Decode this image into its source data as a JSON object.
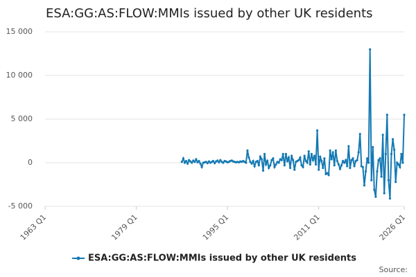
{
  "chart_data": {
    "type": "line",
    "title": "ESA:GG:AS:FLOW:MMIs issued by other UK residents",
    "source": "Source:",
    "xlim": [
      "1963 Q1",
      "2026 Q1"
    ],
    "xticks": [
      "1963 Q1",
      "1979 Q1",
      "1995 Q1",
      "2011 Q1",
      "2026 Q1"
    ],
    "ylim": [
      -5000,
      15000
    ],
    "yticks": [
      {
        "value": -5000,
        "label": "-5 000"
      },
      {
        "value": 0,
        "label": "0"
      },
      {
        "value": 5000,
        "label": "5 000"
      },
      {
        "value": 10000,
        "label": "10 000"
      },
      {
        "value": 15000,
        "label": "15 000"
      }
    ],
    "grid": true,
    "legend": "bottom",
    "x": [
      "1987 Q1",
      "1987 Q2",
      "1987 Q3",
      "1987 Q4",
      "1988 Q1",
      "1988 Q2",
      "1988 Q3",
      "1988 Q4",
      "1989 Q1",
      "1989 Q2",
      "1989 Q3",
      "1989 Q4",
      "1990 Q1",
      "1990 Q2",
      "1990 Q3",
      "1990 Q4",
      "1991 Q1",
      "1991 Q2",
      "1991 Q3",
      "1991 Q4",
      "1992 Q1",
      "1992 Q2",
      "1992 Q3",
      "1992 Q4",
      "1993 Q1",
      "1993 Q2",
      "1993 Q3",
      "1993 Q4",
      "1994 Q1",
      "1994 Q2",
      "1994 Q3",
      "1994 Q4",
      "1995 Q1",
      "1995 Q2",
      "1995 Q3",
      "1995 Q4",
      "1996 Q1",
      "1996 Q2",
      "1996 Q3",
      "1996 Q4",
      "1997 Q1",
      "1997 Q2",
      "1997 Q3",
      "1997 Q4",
      "1998 Q1",
      "1998 Q2",
      "1998 Q3",
      "1998 Q4",
      "1999 Q1",
      "1999 Q2",
      "1999 Q3",
      "1999 Q4",
      "2000 Q1",
      "2000 Q2",
      "2000 Q3",
      "2000 Q4",
      "2001 Q1",
      "2001 Q2",
      "2001 Q3",
      "2001 Q4",
      "2002 Q1",
      "2002 Q2",
      "2002 Q3",
      "2002 Q4",
      "2003 Q1",
      "2003 Q2",
      "2003 Q3",
      "2003 Q4",
      "2004 Q1",
      "2004 Q2",
      "2004 Q3",
      "2004 Q4",
      "2005 Q1",
      "2005 Q2",
      "2005 Q3",
      "2005 Q4",
      "2006 Q1",
      "2006 Q2",
      "2006 Q3",
      "2006 Q4",
      "2007 Q1",
      "2007 Q2",
      "2007 Q3",
      "2007 Q4",
      "2008 Q1",
      "2008 Q2",
      "2008 Q3",
      "2008 Q4",
      "2009 Q1",
      "2009 Q2",
      "2009 Q3",
      "2009 Q4",
      "2010 Q1",
      "2010 Q2",
      "2010 Q3",
      "2010 Q4",
      "2011 Q1",
      "2011 Q2",
      "2011 Q3",
      "2011 Q4",
      "2012 Q1",
      "2012 Q2",
      "2012 Q3",
      "2012 Q4",
      "2013 Q1",
      "2013 Q2",
      "2013 Q3",
      "2013 Q4",
      "2014 Q1",
      "2014 Q2",
      "2014 Q3",
      "2014 Q4",
      "2015 Q1",
      "2015 Q2",
      "2015 Q3",
      "2015 Q4",
      "2016 Q1",
      "2016 Q2",
      "2016 Q3",
      "2016 Q4",
      "2017 Q1",
      "2017 Q2",
      "2017 Q3",
      "2017 Q4",
      "2018 Q1",
      "2018 Q2",
      "2018 Q3",
      "2018 Q4",
      "2019 Q1",
      "2019 Q2",
      "2019 Q3",
      "2019 Q4",
      "2020 Q1",
      "2020 Q2",
      "2020 Q3",
      "2020 Q4",
      "2021 Q1",
      "2021 Q2",
      "2021 Q3",
      "2021 Q4",
      "2022 Q1",
      "2022 Q2",
      "2022 Q3",
      "2022 Q4",
      "2023 Q1",
      "2023 Q2",
      "2023 Q3",
      "2023 Q4",
      "2024 Q1",
      "2024 Q2",
      "2024 Q3",
      "2024 Q4",
      "2025 Q1",
      "2025 Q2",
      "2025 Q3",
      "2025 Q4",
      "2026 Q1"
    ],
    "series": [
      {
        "name": "ESA:GG:AS:FLOW:MMIs issued by other UK residents",
        "color": "#1479b3",
        "values": [
          100,
          500,
          0,
          200,
          -100,
          300,
          150,
          0,
          250,
          100,
          400,
          50,
          200,
          -100,
          -500,
          0,
          50,
          100,
          -50,
          150,
          0,
          100,
          200,
          -50,
          150,
          250,
          50,
          300,
          100,
          0,
          200,
          150,
          50,
          100,
          200,
          250,
          150,
          100,
          50,
          100,
          50,
          150,
          100,
          200,
          100,
          0,
          1400,
          600,
          100,
          -100,
          200,
          -400,
          100,
          200,
          -300,
          700,
          400,
          -900,
          1000,
          -200,
          200,
          -600,
          -300,
          300,
          500,
          -500,
          -200,
          100,
          0,
          400,
          300,
          1000,
          -300,
          1000,
          200,
          600,
          -600,
          800,
          300,
          -800,
          100,
          200,
          300,
          600,
          -300,
          -500,
          800,
          200,
          0,
          1300,
          -200,
          1000,
          300,
          800,
          -200,
          3700,
          -800,
          700,
          200,
          -600,
          500,
          -1300,
          -1200,
          -1400,
          1400,
          400,
          1200,
          -300,
          1400,
          200,
          -200,
          -700,
          -300,
          200,
          0,
          300,
          -400,
          1900,
          -600,
          300,
          500,
          -400,
          200,
          300,
          1200,
          3300,
          -400,
          -500,
          -2600,
          -1000,
          500,
          0,
          13000,
          -2000,
          1800,
          -3100,
          -3900,
          -1000,
          300,
          500,
          -1600,
          3200,
          -3500,
          1000,
          5500,
          -2000,
          -4100,
          1000,
          2700,
          1500,
          -2200,
          0,
          -200,
          -500,
          1000,
          0,
          5500
        ]
      }
    ]
  }
}
